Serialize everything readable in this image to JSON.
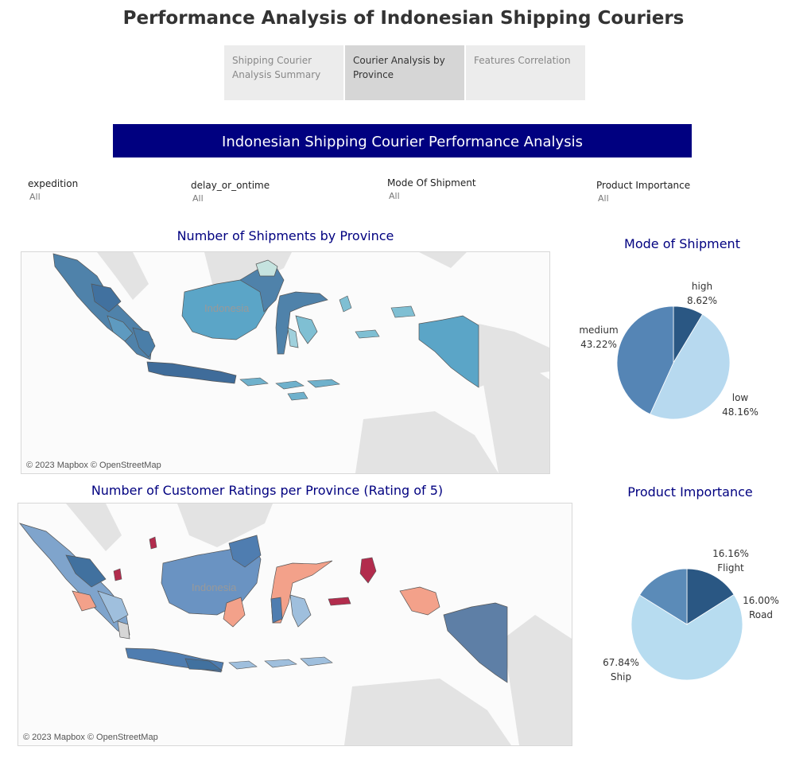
{
  "title": "Performance Analysis of Indonesian Shipping Couriers",
  "tabs": [
    {
      "label": "Shipping Courier Analysis Summary",
      "active": false
    },
    {
      "label": "Courier Analysis by Province",
      "active": true
    },
    {
      "label": "Features Correlation",
      "active": false
    }
  ],
  "banner": "Indonesian Shipping Courier Performance Analysis",
  "filters": [
    {
      "label": "expedition",
      "value": "All"
    },
    {
      "label": "delay_or_ontime",
      "value": "All"
    },
    {
      "label": "Mode Of Shipment",
      "value": "All"
    },
    {
      "label": "Product Importance",
      "value": "All"
    }
  ],
  "map1": {
    "title": "Number of Shipments by Province",
    "country_label": "Indonesia",
    "credit": "© 2023 Mapbox © OpenStreetMap"
  },
  "map2": {
    "title": "Number of Customer Ratings per Province (Rating of 5)",
    "country_label": "Indonesia",
    "credit": "© 2023 Mapbox © OpenStreetMap"
  },
  "pie1": {
    "title": "Mode of Shipment",
    "slices": [
      {
        "label": "high",
        "pct": "8.62%",
        "value": 8.62,
        "color": "#2a5783"
      },
      {
        "label": "low",
        "pct": "48.16%",
        "value": 48.16,
        "color": "#b7d9ef"
      },
      {
        "label": "medium",
        "pct": "43.22%",
        "value": 43.22,
        "color": "#5585b5"
      }
    ]
  },
  "pie2": {
    "title": "Product Importance",
    "slices": [
      {
        "label": "Road",
        "pct": "16.00%",
        "value": 16.0,
        "color": "#2a5783"
      },
      {
        "label": "Ship",
        "pct": "67.84%",
        "value": 67.84,
        "color": "#b7dcf0"
      },
      {
        "label": "Flight",
        "pct": "16.16%",
        "value": 16.16,
        "color": "#5b8bb8"
      }
    ]
  }
}
